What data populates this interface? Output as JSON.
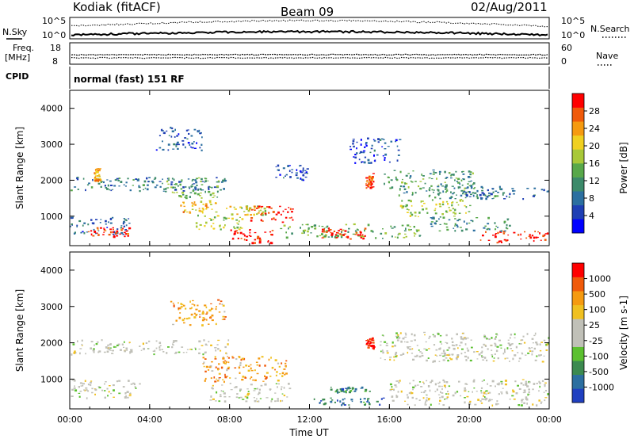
{
  "header": {
    "station": "Kodiak (fitACF)",
    "beam": "Beam 09",
    "date": "02/Aug/2011"
  },
  "strip_panels": {
    "nsky_label": "N.Sky",
    "nsky_ticks": [
      "10^5",
      "10^0"
    ],
    "nsearch_label": "N.Search",
    "nsearch_ticks": [
      "10^5",
      "10^0"
    ],
    "freq_label_top": "Freq.",
    "freq_label_bottom": "[MHz]",
    "freq_ticks": [
      "18",
      "8"
    ],
    "nave_label": "Nave",
    "nave_ticks": [
      "60",
      "0"
    ],
    "cpid_label": "CPID",
    "cpid_text": "normal (fast) 151 RF"
  },
  "chart_data": [
    {
      "type": "heatmap",
      "name": "power",
      "ylabel": "Slant Range [km]",
      "ylim": [
        180,
        4500
      ],
      "yticks": [
        "4000",
        "3000",
        "2000",
        "1000"
      ],
      "xlim_hours": [
        0,
        24
      ],
      "colorbar": {
        "label": "Power [dB]",
        "ticks": [
          "28",
          "24",
          "20",
          "16",
          "12",
          "8",
          "4"
        ],
        "colors": [
          "#0000ff",
          "#1f3fb4",
          "#2c6fa0",
          "#3c8a6a",
          "#58a84a",
          "#a8c838",
          "#f0d020",
          "#f59a10",
          "#f05a0a",
          "#ff0000"
        ]
      },
      "blobs": [
        {
          "t": [
            0.0,
            7.8
          ],
          "r": [
            1700,
            2100
          ],
          "level": 0.28
        },
        {
          "t": [
            0.0,
            3.0
          ],
          "r": [
            500,
            1000
          ],
          "level": 0.22
        },
        {
          "t": [
            0.9,
            3.0
          ],
          "r": [
            450,
            700
          ],
          "level": 0.92
        },
        {
          "t": [
            1.2,
            1.5
          ],
          "r": [
            2000,
            2350
          ],
          "level": 0.7
        },
        {
          "t": [
            4.3,
            6.6
          ],
          "r": [
            2850,
            3500
          ],
          "level": 0.18
        },
        {
          "t": [
            4.8,
            7.5
          ],
          "r": [
            1500,
            2100
          ],
          "level": 0.45
        },
        {
          "t": [
            5.5,
            7.3
          ],
          "r": [
            1100,
            1450
          ],
          "level": 0.7
        },
        {
          "t": [
            6.3,
            8.6
          ],
          "r": [
            650,
            1050
          ],
          "level": 0.55
        },
        {
          "t": [
            7.8,
            9.8
          ],
          "r": [
            1050,
            1300
          ],
          "level": 0.6
        },
        {
          "t": [
            8.0,
            10.2
          ],
          "r": [
            250,
            650
          ],
          "level": 0.95
        },
        {
          "t": [
            9.0,
            11.2
          ],
          "r": [
            850,
            1300
          ],
          "level": 0.96
        },
        {
          "t": [
            10.2,
            11.9
          ],
          "r": [
            2000,
            2450
          ],
          "level": 0.2
        },
        {
          "t": [
            10.5,
            17.5
          ],
          "r": [
            400,
            800
          ],
          "level": 0.45
        },
        {
          "t": [
            12.5,
            14.8
          ],
          "r": [
            380,
            700
          ],
          "level": 0.95
        },
        {
          "t": [
            14.0,
            16.5
          ],
          "r": [
            2500,
            3200
          ],
          "level": 0.18
        },
        {
          "t": [
            14.8,
            15.2
          ],
          "r": [
            1800,
            2200
          ],
          "level": 0.85
        },
        {
          "t": [
            15.7,
            20.2
          ],
          "r": [
            1600,
            2300
          ],
          "level": 0.4
        },
        {
          "t": [
            16.5,
            20.0
          ],
          "r": [
            1000,
            1500
          ],
          "level": 0.55
        },
        {
          "t": [
            17.8,
            21.5
          ],
          "r": [
            1500,
            1850
          ],
          "level": 0.35
        },
        {
          "t": [
            19.5,
            24.0
          ],
          "r": [
            1500,
            1800
          ],
          "level": 0.25
        },
        {
          "t": [
            20.5,
            24.0
          ],
          "r": [
            280,
            600
          ],
          "level": 0.97
        },
        {
          "t": [
            18.0,
            22.0
          ],
          "r": [
            600,
            1000
          ],
          "level": 0.35
        }
      ]
    },
    {
      "type": "heatmap",
      "name": "velocity",
      "ylabel": "Slant Range [km]",
      "ylim": [
        180,
        4500
      ],
      "yticks": [
        "4000",
        "3000",
        "2000",
        "1000"
      ],
      "xlabel": "Time UT",
      "xticks": [
        "00:00",
        "04:00",
        "08:00",
        "12:00",
        "16:00",
        "20:00",
        "00:00"
      ],
      "xlim_hours": [
        0,
        24
      ],
      "colorbar": {
        "label": "Velocity [m s-1]",
        "ticks": [
          "1000",
          "500",
          "100",
          "25",
          "-25",
          "-100",
          "-500",
          "-1000"
        ],
        "colors": [
          "#2040c0",
          "#2c6fa0",
          "#3c8a50",
          "#5cc030",
          "#c0c0b8",
          "#c0c0b8",
          "#f0c020",
          "#f59a10",
          "#f05a0a",
          "#ff0000"
        ]
      },
      "blobs": [
        {
          "t": [
            0.0,
            8.0
          ],
          "r": [
            1700,
            2100
          ],
          "level": 0.5
        },
        {
          "t": [
            0.0,
            3.5
          ],
          "r": [
            500,
            1000
          ],
          "level": 0.5
        },
        {
          "t": [
            5.0,
            7.8
          ],
          "r": [
            2500,
            3200
          ],
          "level": 0.72
        },
        {
          "t": [
            6.5,
            10.8
          ],
          "r": [
            950,
            1650
          ],
          "level": 0.72
        },
        {
          "t": [
            7.0,
            11.0
          ],
          "r": [
            400,
            900
          ],
          "level": 0.5
        },
        {
          "t": [
            13.0,
            15.0
          ],
          "r": [
            650,
            800
          ],
          "level": 0.22
        },
        {
          "t": [
            14.8,
            15.2
          ],
          "r": [
            1850,
            2150
          ],
          "level": 0.96
        },
        {
          "t": [
            15.5,
            24.0
          ],
          "r": [
            1500,
            2300
          ],
          "level": 0.5
        },
        {
          "t": [
            16.0,
            24.0
          ],
          "r": [
            300,
            1000
          ],
          "level": 0.5
        },
        {
          "t": [
            12.0,
            16.0
          ],
          "r": [
            300,
            500
          ],
          "level": 0.2
        }
      ]
    }
  ]
}
